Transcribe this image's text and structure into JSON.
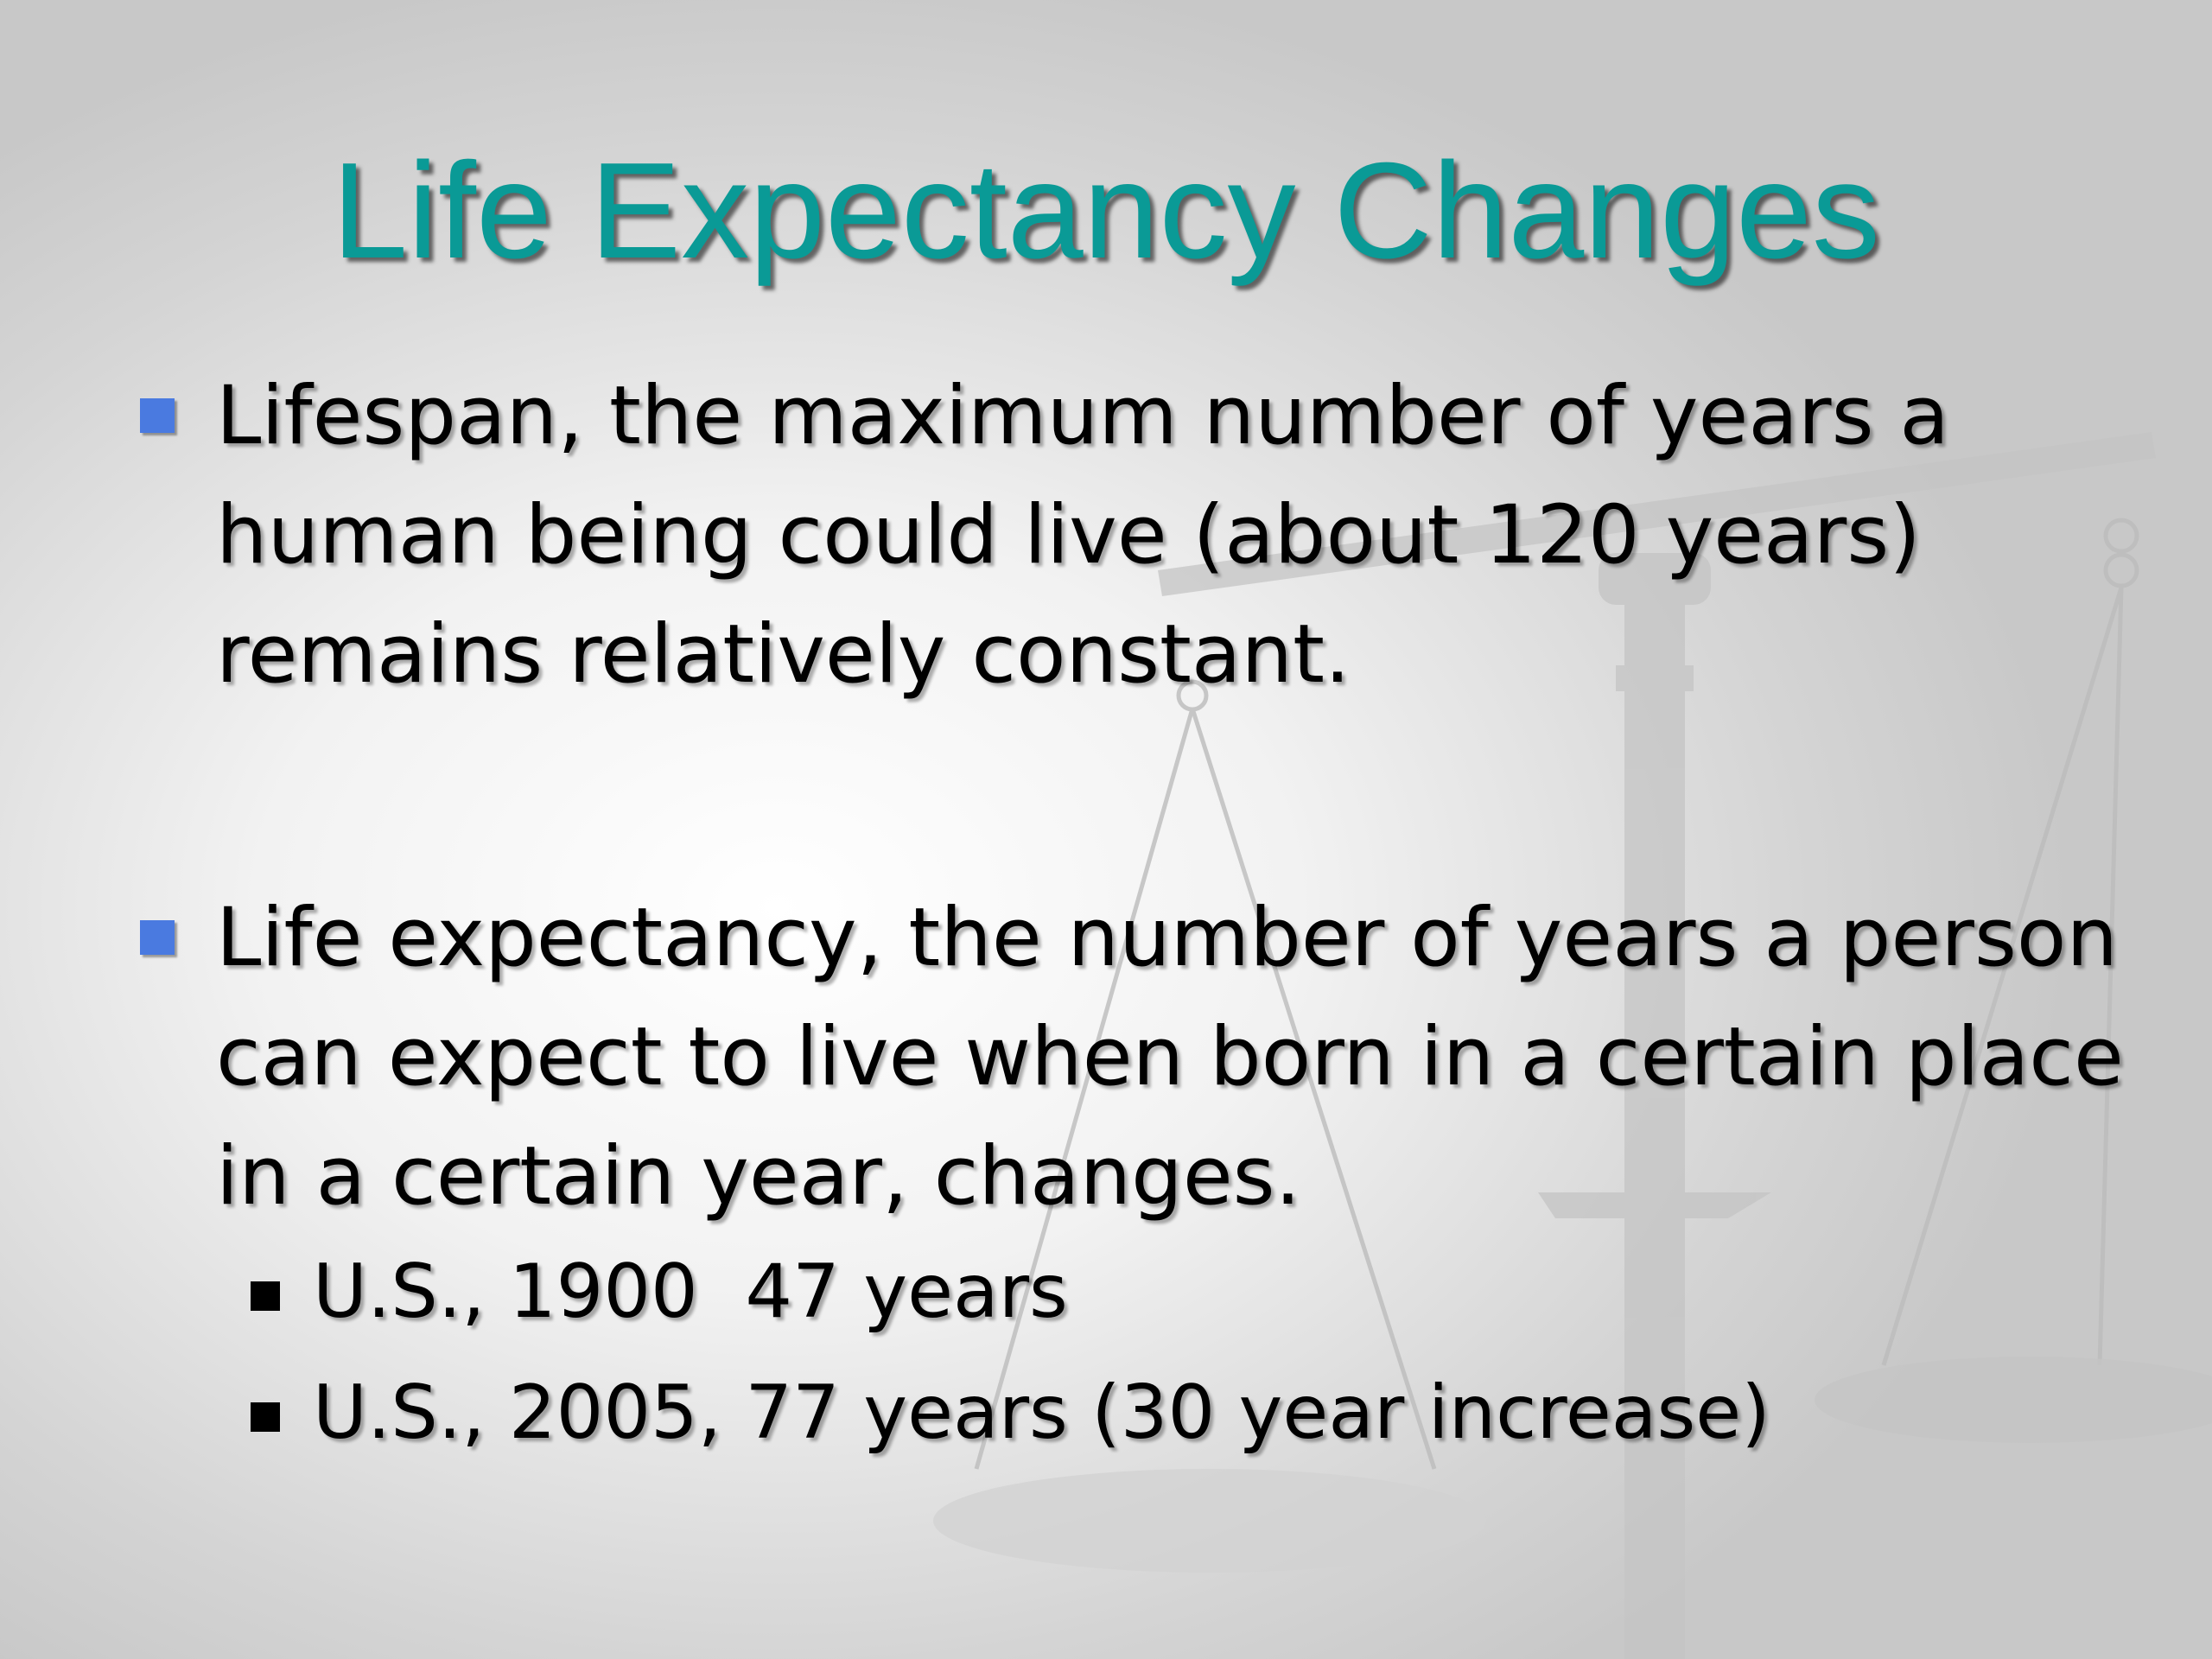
{
  "title": "Life Expectancy Changes",
  "bullets": [
    {
      "text": "Lifespan, the maximum number of years a human being could live (about 120 years) remains relatively constant."
    },
    {
      "text": "Life expectancy, the number of years a person can expect to live when born in a certain place in a certain year, changes.",
      "sub": [
        "U.S., 1900  47 years",
        "U.S., 2005, 77 years (30 year increase)"
      ]
    }
  ]
}
